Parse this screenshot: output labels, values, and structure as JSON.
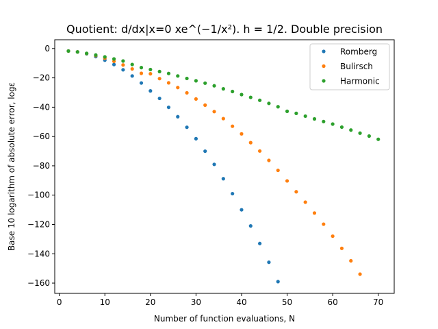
{
  "chart_data": {
    "type": "scatter",
    "title": "Quotient: d/dx|x=0 xe^(−1/x²). h = 1/2. Double precision",
    "xlabel": "Number of function evaluations, N",
    "ylabel": "Base 10 logarithm of absolute error, logε",
    "xlim": [
      -1,
      73.5
    ],
    "ylim": [
      -167,
      6
    ],
    "xticks": [
      0,
      10,
      20,
      30,
      40,
      50,
      60,
      70
    ],
    "yticks": [
      0,
      -20,
      -40,
      -60,
      -80,
      -100,
      -120,
      -140,
      -160
    ],
    "grid": false,
    "legend_position": "top-right",
    "series": [
      {
        "name": "Romberg",
        "color": "#1f77b4",
        "x": [
          2,
          4,
          6,
          8,
          10,
          12,
          14,
          16,
          18,
          20,
          22,
          24,
          26,
          28,
          30,
          32,
          34,
          36,
          38,
          40,
          42,
          44,
          46,
          48
        ],
        "y": [
          -1.7,
          -2.3,
          -3.6,
          -5.5,
          -7.9,
          -10.9,
          -14.5,
          -18.7,
          -23.5,
          -28.9,
          -34.0,
          -40.1,
          -46.5,
          -53.7,
          -61.5,
          -70.0,
          -79.0,
          -88.8,
          -99.0,
          -110.0,
          -121.0,
          -133.0,
          -145.8,
          -159.0
        ]
      },
      {
        "name": "Bulirsch",
        "color": "#ff7f0e",
        "x": [
          2,
          4,
          6,
          8,
          10,
          12,
          14,
          16,
          18,
          20,
          22,
          24,
          26,
          28,
          30,
          32,
          34,
          36,
          38,
          40,
          42,
          44,
          46,
          48,
          50,
          52,
          54,
          56,
          58,
          60,
          62,
          64,
          66
        ],
        "y": [
          -1.7,
          -2.3,
          -3.4,
          -4.8,
          -6.6,
          -8.7,
          -11.2,
          -13.9,
          -16.9,
          -17.2,
          -20.5,
          -23.4,
          -26.6,
          -30.2,
          -34.4,
          -38.6,
          -43.0,
          -47.8,
          -53.0,
          -58.2,
          -64.2,
          -69.9,
          -76.3,
          -83.1,
          -90.3,
          -97.7,
          -104.8,
          -112.2,
          -119.8,
          -128.0,
          -136.3,
          -144.8,
          -153.9
        ]
      },
      {
        "name": "Harmonic",
        "color": "#2ca02c",
        "x": [
          2,
          4,
          6,
          8,
          10,
          12,
          14,
          16,
          18,
          20,
          22,
          24,
          26,
          28,
          30,
          32,
          34,
          36,
          38,
          40,
          42,
          44,
          46,
          48,
          50,
          52,
          54,
          56,
          58,
          60,
          62,
          64,
          66,
          68,
          70
        ],
        "y": [
          -1.7,
          -2.3,
          -3.3,
          -4.4,
          -5.7,
          -7.1,
          -8.5,
          -10.9,
          -13.0,
          -14.3,
          -15.7,
          -17.0,
          -18.7,
          -20.4,
          -22.0,
          -23.6,
          -25.4,
          -27.5,
          -29.3,
          -31.4,
          -33.3,
          -35.3,
          -37.4,
          -39.7,
          -42.8,
          -44.2,
          -46.1,
          -48.0,
          -49.8,
          -51.5,
          -53.6,
          -55.6,
          -57.7,
          -59.7,
          -61.9
        ]
      }
    ]
  }
}
